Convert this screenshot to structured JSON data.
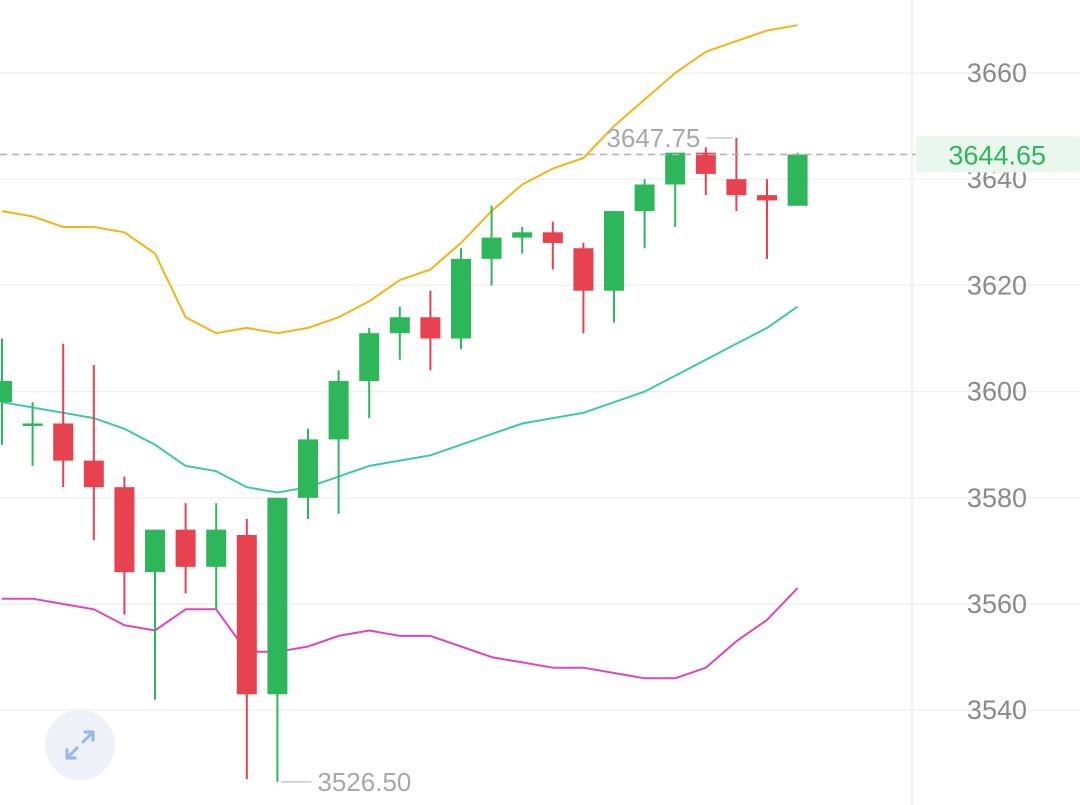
{
  "chart_data": {
    "type": "candlestick",
    "y_axis": {
      "ticks": [
        3540,
        3560,
        3580,
        3600,
        3620,
        3640,
        3660
      ],
      "range": [
        3522,
        3674
      ],
      "position": "right"
    },
    "current_price": {
      "value": 3644.65,
      "label": "3644.65"
    },
    "high_marker": {
      "value": 3647.75,
      "label": "3647.75"
    },
    "low_marker": {
      "value": 3526.5,
      "label": "3526.50"
    },
    "candles": [
      {
        "o": 3598,
        "c": 3602,
        "h": 3610,
        "l": 3590
      },
      {
        "o": 3594,
        "c": 3594,
        "h": 3598,
        "l": 3586
      },
      {
        "o": 3594,
        "c": 3587,
        "h": 3609,
        "l": 3582
      },
      {
        "o": 3587,
        "c": 3582,
        "h": 3605,
        "l": 3572
      },
      {
        "o": 3582,
        "c": 3566,
        "h": 3584,
        "l": 3558
      },
      {
        "o": 3566,
        "c": 3574,
        "h": 3574,
        "l": 3542
      },
      {
        "o": 3574,
        "c": 3567,
        "h": 3579,
        "l": 3562
      },
      {
        "o": 3567,
        "c": 3574,
        "h": 3579,
        "l": 3559
      },
      {
        "o": 3573,
        "c": 3543,
        "h": 3576,
        "l": 3527
      },
      {
        "o": 3543,
        "c": 3580,
        "h": 3580,
        "l": 3526.5
      },
      {
        "o": 3580,
        "c": 3591,
        "h": 3593,
        "l": 3576
      },
      {
        "o": 3591,
        "c": 3602,
        "h": 3604,
        "l": 3577
      },
      {
        "o": 3602,
        "c": 3611,
        "h": 3612,
        "l": 3595
      },
      {
        "o": 3611,
        "c": 3614,
        "h": 3616,
        "l": 3606
      },
      {
        "o": 3614,
        "c": 3610,
        "h": 3619,
        "l": 3604
      },
      {
        "o": 3610,
        "c": 3625,
        "h": 3627,
        "l": 3608
      },
      {
        "o": 3625,
        "c": 3629,
        "h": 3635,
        "l": 3620
      },
      {
        "o": 3629,
        "c": 3630,
        "h": 3631,
        "l": 3626
      },
      {
        "o": 3630,
        "c": 3628,
        "h": 3632,
        "l": 3623
      },
      {
        "o": 3627,
        "c": 3619,
        "h": 3628,
        "l": 3611
      },
      {
        "o": 3619,
        "c": 3634,
        "h": 3634,
        "l": 3613
      },
      {
        "o": 3634,
        "c": 3639,
        "h": 3640,
        "l": 3627
      },
      {
        "o": 3639,
        "c": 3645,
        "h": 3645,
        "l": 3631
      },
      {
        "o": 3645,
        "c": 3641,
        "h": 3646,
        "l": 3637
      },
      {
        "o": 3640,
        "c": 3637,
        "h": 3647.75,
        "l": 3634
      },
      {
        "o": 3637,
        "c": 3636,
        "h": 3640,
        "l": 3625
      },
      {
        "o": 3635,
        "c": 3644.65,
        "h": 3645,
        "l": 3635
      }
    ],
    "bands": {
      "upper": [
        3634,
        3633,
        3631,
        3631,
        3630,
        3626,
        3614,
        3611,
        3612,
        3611,
        3612,
        3614,
        3617,
        3621,
        3623,
        3628,
        3634,
        3639,
        3642,
        3644,
        3650,
        3655,
        3660,
        3664,
        3666,
        3668,
        3669
      ],
      "middle": [
        3598,
        3597,
        3596,
        3595,
        3593,
        3590,
        3586,
        3585,
        3582,
        3581,
        3582,
        3584,
        3586,
        3587,
        3588,
        3590,
        3592,
        3594,
        3595,
        3596,
        3598,
        3600,
        3603,
        3606,
        3609,
        3612,
        3616
      ],
      "lower": [
        3561,
        3561,
        3560,
        3559,
        3556,
        3555,
        3559,
        3559,
        3551,
        3551,
        3552,
        3554,
        3555,
        3554,
        3554,
        3552,
        3550,
        3549,
        3548,
        3548,
        3547,
        3546,
        3546,
        3548,
        3553,
        3557,
        3563
      ]
    },
    "colors": {
      "up": "#2db75a",
      "down": "#e8414f",
      "upper_band": "#f5b315",
      "middle_band": "#3cc9a8",
      "lower_band": "#e046b8",
      "grid": "#eeeeee",
      "axis_text": "#8a8a8a",
      "price_line": "#b0b0b0",
      "price_tag_bg": "#e9f7ee"
    }
  },
  "toolbar": {
    "expand_icon": "expand-arrows-icon"
  }
}
